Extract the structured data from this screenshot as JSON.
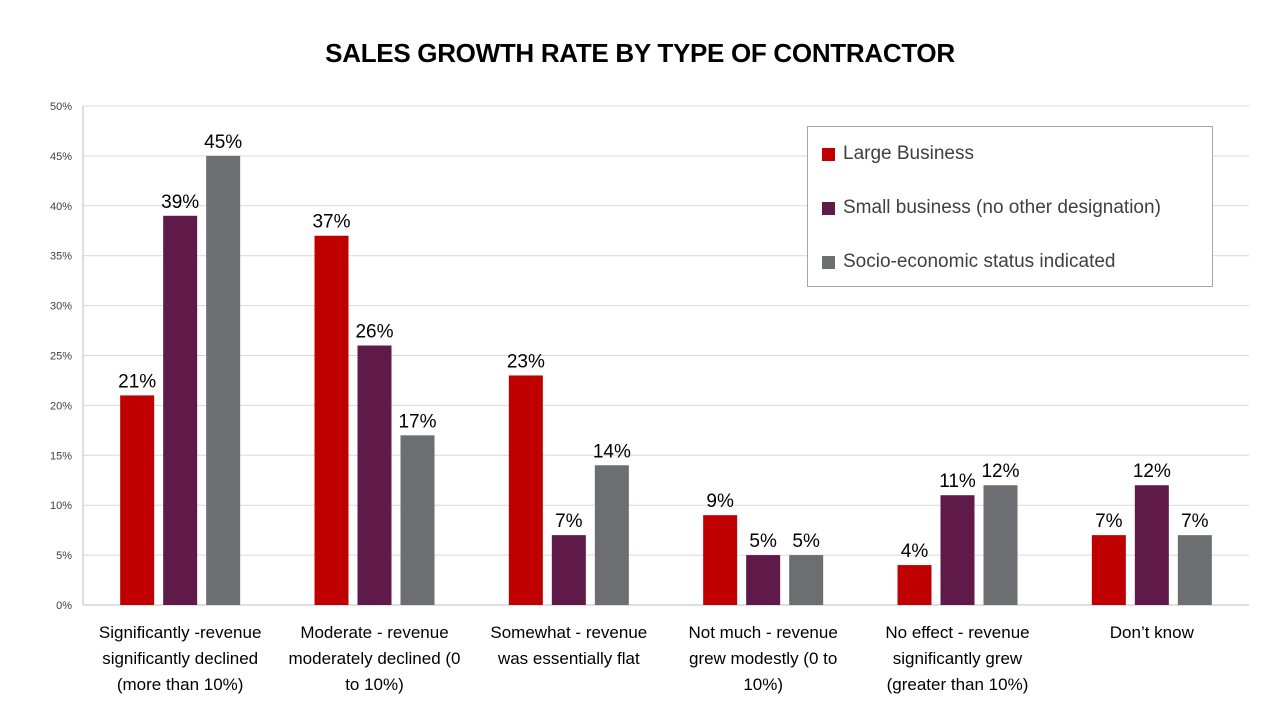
{
  "chart_data": {
    "type": "bar",
    "title": "SALES GROWTH RATE BY TYPE OF CONTRACTOR",
    "xlabel": "",
    "ylabel": "",
    "ylim": [
      0,
      50
    ],
    "y_ticks": [
      "0%",
      "5%",
      "10%",
      "15%",
      "20%",
      "25%",
      "30%",
      "35%",
      "40%",
      "45%",
      "50%"
    ],
    "grid": true,
    "legend_position": "top-right",
    "categories": [
      "Significantly -revenue significantly declined (more than 10%)",
      "Moderate - revenue moderately declined (0 to 10%)",
      "Somewhat - revenue was essentially flat",
      "Not much - revenue grew modestly (0 to 10%)",
      "No effect - revenue significantly grew (greater than 10%)",
      "Don’t know"
    ],
    "series": [
      {
        "name": "Large Business",
        "color": "#c00000",
        "values": [
          21,
          37,
          23,
          9,
          4,
          7
        ],
        "labels": [
          "21%",
          "37%",
          "23%",
          "9%",
          "4%",
          "7%"
        ]
      },
      {
        "name": "Small business (no other designation)",
        "color": "#5f1a4a",
        "values": [
          39,
          26,
          7,
          5,
          11,
          12
        ],
        "labels": [
          "39%",
          "26%",
          "7%",
          "5%",
          "11%",
          "12%"
        ]
      },
      {
        "name": "Socio-economic status indicated",
        "color": "#6d6e71",
        "values": [
          45,
          17,
          14,
          5,
          12,
          7
        ],
        "labels": [
          "45%",
          "17%",
          "14%",
          "5%",
          "12%",
          "7%"
        ]
      }
    ]
  }
}
